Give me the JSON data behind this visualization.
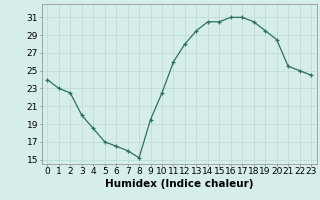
{
  "x": [
    0,
    1,
    2,
    3,
    4,
    5,
    6,
    7,
    8,
    9,
    10,
    11,
    12,
    13,
    14,
    15,
    16,
    17,
    18,
    19,
    20,
    21,
    22,
    23
  ],
  "y": [
    24.0,
    23.0,
    22.5,
    20.0,
    18.5,
    17.0,
    16.5,
    16.0,
    15.2,
    19.5,
    22.5,
    26.0,
    28.0,
    29.5,
    30.5,
    30.5,
    31.0,
    31.0,
    30.5,
    29.5,
    28.5,
    25.5,
    25.0,
    24.5
  ],
  "line_color": "#2e7060",
  "marker": "+",
  "bg_color": "#d5eeeb",
  "grid_color": "#c0dbd8",
  "xlabel": "Humidex (Indice chaleur)",
  "ylabel_ticks": [
    15,
    17,
    19,
    21,
    23,
    25,
    27,
    29,
    31
  ],
  "xlim": [
    -0.5,
    23.5
  ],
  "ylim": [
    14.5,
    32.5
  ],
  "tick_fontsize": 6.5,
  "xlabel_fontsize": 7.5
}
